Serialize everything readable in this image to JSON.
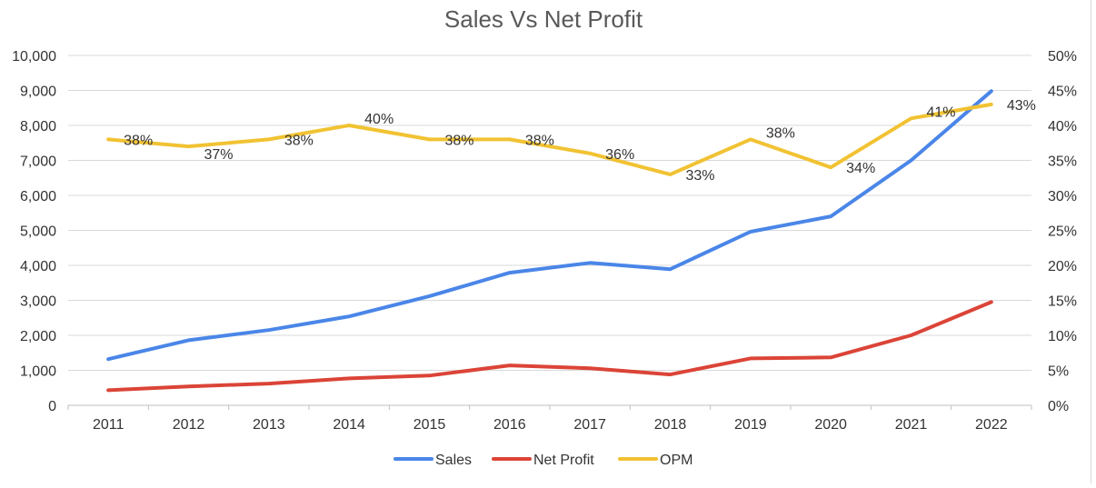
{
  "chart_data": {
    "type": "line",
    "title": "Sales Vs Net Profit",
    "categories": [
      "2011",
      "2012",
      "2013",
      "2014",
      "2015",
      "2016",
      "2017",
      "2018",
      "2019",
      "2020",
      "2021",
      "2022"
    ],
    "left_axis": {
      "min": 0,
      "max": 10000,
      "step": 1000,
      "tick_labels": [
        "0",
        "1,000",
        "2,000",
        "3,000",
        "4,000",
        "5,000",
        "6,000",
        "7,000",
        "8,000",
        "9,000",
        "10,000"
      ]
    },
    "right_axis": {
      "min": 0,
      "max": 50,
      "step": 5,
      "tick_labels": [
        "0%",
        "5%",
        "10%",
        "15%",
        "20%",
        "25%",
        "30%",
        "35%",
        "40%",
        "45%",
        "50%"
      ]
    },
    "grid": true,
    "legend_position": "bottom",
    "series": [
      {
        "name": "Sales",
        "axis": "left",
        "color": "#4a86e8",
        "values": [
          1320,
          1860,
          2150,
          2540,
          3120,
          3790,
          4070,
          3890,
          4960,
          5400,
          7000,
          8980
        ]
      },
      {
        "name": "Net Profit",
        "axis": "left",
        "color": "#db4437",
        "values": [
          430,
          540,
          620,
          770,
          850,
          1140,
          1060,
          880,
          1340,
          1370,
          2000,
          2950
        ]
      },
      {
        "name": "OPM",
        "axis": "right",
        "color": "#f1c232",
        "values": [
          38,
          37,
          38,
          40,
          38,
          38,
          36,
          33,
          38,
          34,
          41,
          43
        ],
        "data_labels": [
          "38%",
          "37%",
          "38%",
          "40%",
          "38%",
          "38%",
          "36%",
          "33%",
          "38%",
          "34%",
          "41%",
          "43%"
        ]
      }
    ]
  }
}
